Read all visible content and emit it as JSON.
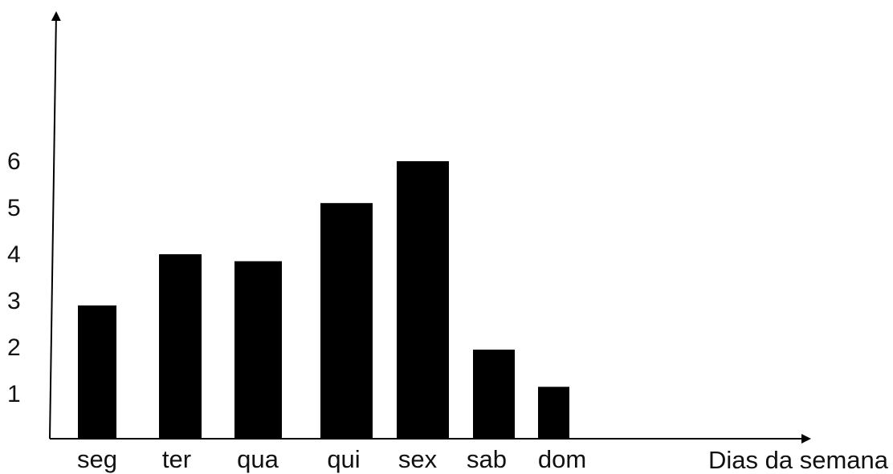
{
  "chart_data": {
    "type": "bar",
    "title": "",
    "xlabel": "Dias da semana",
    "ylabel": "",
    "categories": [
      "seg",
      "ter",
      "qua",
      "qui",
      "sex",
      "sab",
      "dom"
    ],
    "values": [
      2.9,
      4.0,
      3.85,
      5.1,
      6.0,
      1.95,
      1.15
    ],
    "yticks": [
      "1",
      "2",
      "3",
      "4",
      "5",
      "6"
    ],
    "ylim": [
      0,
      7
    ],
    "grid": false,
    "legend": "none",
    "colors": {
      "bar": "#000000",
      "axis": "#000000",
      "text": "#111111"
    }
  }
}
